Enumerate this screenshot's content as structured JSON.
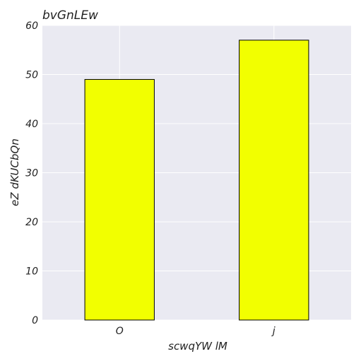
{
  "chart_data": {
    "type": "bar",
    "title": "bvGnLEw",
    "xlabel": "scwqYW lM",
    "ylabel": "eZ dKUCbQn",
    "categories": [
      "O",
      "j"
    ],
    "series": [
      {
        "values": [
          49,
          57
        ]
      }
    ],
    "ylim": [
      0,
      60
    ],
    "yticks": [
      0,
      10,
      20,
      30,
      40,
      50,
      60
    ],
    "grid": true,
    "colors": {
      "bar_fill": "#f2ff00",
      "bar_edge": "#000000",
      "plot_background": "#eaeaf2",
      "grid": "#ffffff"
    }
  }
}
